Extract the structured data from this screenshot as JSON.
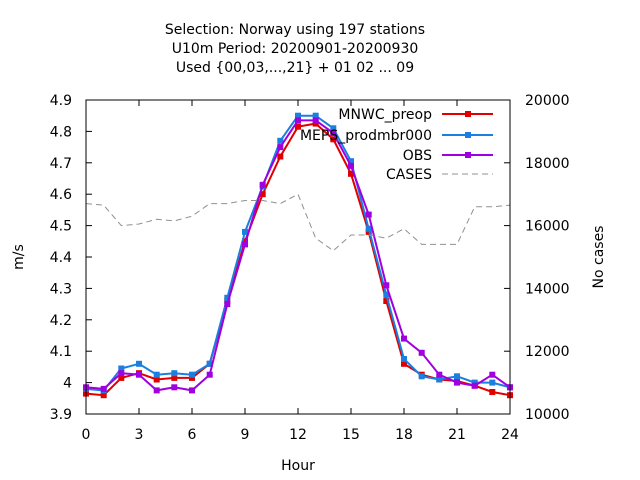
{
  "chart_data": {
    "type": "line",
    "title_lines": [
      "Selection: Norway using   197 stations",
      "U10m   Period: 20200901-20200930",
      "Used {00,03,...,21} + 01 02 ... 09"
    ],
    "xlabel": "Hour",
    "ylabel": "m/s",
    "y2label": "No cases",
    "xlim": [
      0,
      24
    ],
    "ylim": [
      3.9,
      4.9
    ],
    "y2lim": [
      10000,
      20000
    ],
    "xticks": [
      0,
      3,
      6,
      9,
      12,
      15,
      18,
      21,
      24
    ],
    "yticks": [
      3.9,
      4,
      4.1,
      4.2,
      4.3,
      4.4,
      4.5,
      4.6,
      4.7,
      4.8,
      4.9
    ],
    "ytick_labels": [
      "3.9",
      "4",
      "4.1",
      "4.2",
      "4.3",
      "4.4",
      "4.5",
      "4.6",
      "4.7",
      "4.8",
      "4.9"
    ],
    "y2ticks": [
      10000,
      12000,
      14000,
      16000,
      18000,
      20000
    ],
    "grid": false,
    "legend_position": "top-right",
    "x": [
      0,
      1,
      2,
      3,
      4,
      5,
      6,
      7,
      8,
      9,
      10,
      11,
      12,
      13,
      14,
      15,
      16,
      17,
      18,
      19,
      20,
      21,
      22,
      23,
      24
    ],
    "series": [
      {
        "name": "MNWC_preop",
        "color": "#e00000",
        "marker": "square",
        "axis": "y",
        "values": [
          3.965,
          3.96,
          4.015,
          4.03,
          4.01,
          4.015,
          4.015,
          4.06,
          4.26,
          4.45,
          4.6,
          4.72,
          4.815,
          4.825,
          4.775,
          4.665,
          4.48,
          4.26,
          4.06,
          4.025,
          4.01,
          4.005,
          3.99,
          3.97,
          3.96
        ]
      },
      {
        "name": "MEPS_prodmbr000",
        "color": "#1a7fe0",
        "marker": "square",
        "axis": "y",
        "values": [
          3.98,
          3.975,
          4.045,
          4.06,
          4.025,
          4.03,
          4.025,
          4.06,
          4.27,
          4.48,
          4.625,
          4.77,
          4.85,
          4.85,
          4.81,
          4.705,
          4.49,
          4.28,
          4.075,
          4.02,
          4.01,
          4.02,
          4.0,
          4.0,
          3.985
        ]
      },
      {
        "name": "OBS",
        "color": "#a000e0",
        "marker": "square",
        "axis": "y",
        "values": [
          3.985,
          3.98,
          4.03,
          4.025,
          3.975,
          3.985,
          3.975,
          4.025,
          4.25,
          4.44,
          4.63,
          4.75,
          4.835,
          4.835,
          4.795,
          4.69,
          4.535,
          4.31,
          4.14,
          4.095,
          4.025,
          4.0,
          3.99,
          4.025,
          3.985
        ]
      },
      {
        "name": "CASES",
        "color": "#909090",
        "dashed": true,
        "axis": "y2",
        "values": [
          16700,
          16650,
          16000,
          16050,
          16200,
          16150,
          16300,
          16700,
          16700,
          16800,
          16800,
          16700,
          17000,
          15600,
          15200,
          15700,
          15700,
          15600,
          15900,
          15400,
          15400,
          15400,
          16600,
          16600,
          16650
        ]
      }
    ]
  }
}
